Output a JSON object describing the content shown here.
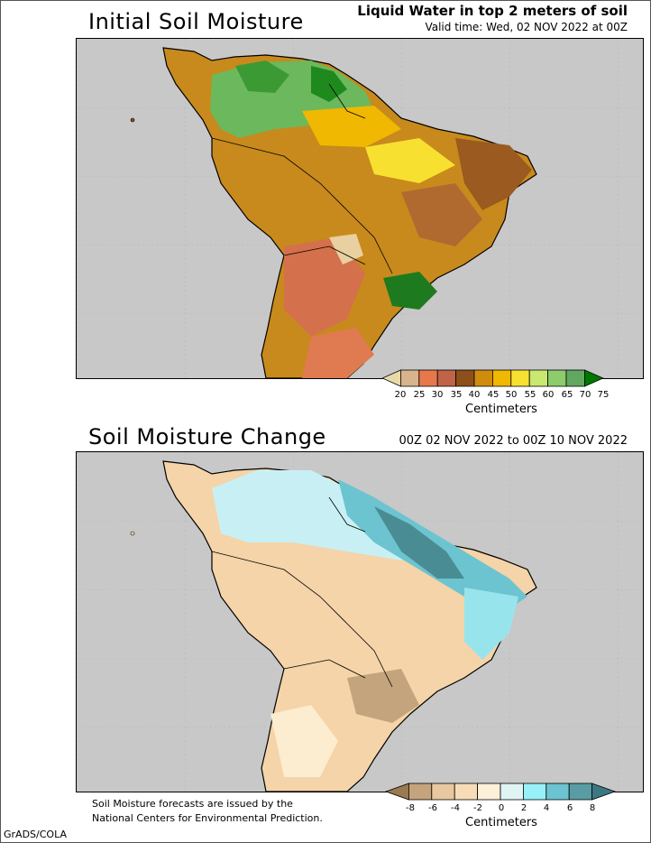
{
  "panel1": {
    "title": "Initial Soil Moisture",
    "header_line1": "Liquid Water in top 2 meters of soil",
    "header_line2": "Valid time: Wed, 02 NOV 2022 at 00Z",
    "colorbar": {
      "ticks": [
        "20",
        "25",
        "30",
        "35",
        "40",
        "45",
        "50",
        "55",
        "60",
        "65",
        "70",
        "75"
      ],
      "colors": [
        "#e8d9a8",
        "#d8b48c",
        "#e8784c",
        "#c06448",
        "#8c5018",
        "#d08c0c",
        "#f0b800",
        "#f8e030",
        "#c8e870",
        "#8ccc6c",
        "#60a860",
        "#007800"
      ],
      "units": "Centimeters"
    }
  },
  "panel2": {
    "title": "Soil Moisture Change",
    "header": "00Z 02 NOV 2022 to 00Z 10 NOV 2022",
    "colorbar": {
      "ticks": [
        "-8",
        "-6",
        "-4",
        "-2",
        "0",
        "2",
        "4",
        "6",
        "8"
      ],
      "colors": [
        "#9a7a50",
        "#c4a47c",
        "#e8c8a0",
        "#f8dcb8",
        "#fcf0d8",
        "#e0f4f4",
        "#98f0f8",
        "#6cc4d0",
        "#5a9ca4",
        "#3c7884"
      ],
      "units": "Centimeters"
    }
  },
  "footer": {
    "note_line1": "Soil Moisture forecasts are issued by the",
    "note_line2": "National Centers for Environmental Prediction.",
    "credit": "GrADS/COLA"
  },
  "colors": {
    "ocean": "#c8c8c8",
    "frame": "#000000"
  }
}
